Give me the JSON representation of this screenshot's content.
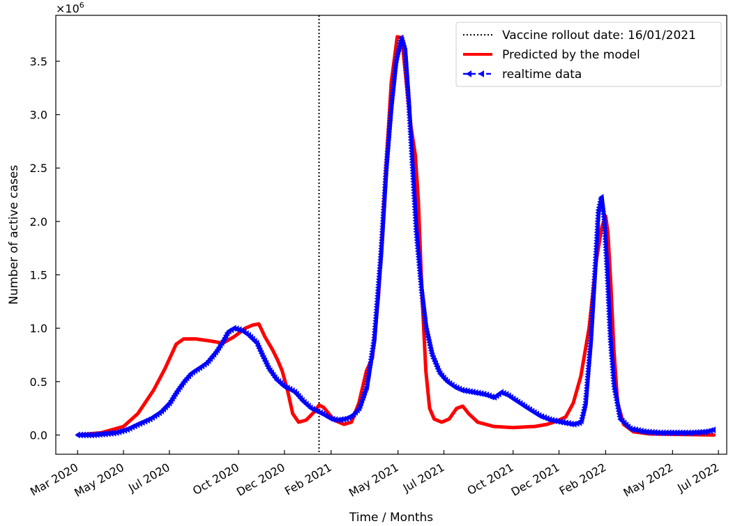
{
  "chart_data": {
    "type": "line",
    "title": "",
    "xlabel": "Time / Months",
    "ylabel": "Number of active cases",
    "y_multiplier_label": "×10",
    "y_multiplier_exponent": "6",
    "xlim": [
      "2020-02-01",
      "2022-07-12"
    ],
    "ylim": [
      -0.18,
      3.93
    ],
    "x_ticks": [
      {
        "date": "2020-03-01",
        "label": "Mar 2020"
      },
      {
        "date": "2020-05-01",
        "label": "May 2020"
      },
      {
        "date": "2020-07-01",
        "label": "Jul 2020"
      },
      {
        "date": "2020-10-01",
        "label": "Oct 2020"
      },
      {
        "date": "2020-12-01",
        "label": "Dec 2020"
      },
      {
        "date": "2021-02-01",
        "label": "Feb 2021"
      },
      {
        "date": "2021-05-01",
        "label": "May 2021"
      },
      {
        "date": "2021-07-01",
        "label": "Jul 2021"
      },
      {
        "date": "2021-10-01",
        "label": "Oct 2021"
      },
      {
        "date": "2021-12-01",
        "label": "Dec 2021"
      },
      {
        "date": "2022-02-01",
        "label": "Feb 2022"
      },
      {
        "date": "2022-05-01",
        "label": "May 2022"
      },
      {
        "date": "2022-07-01",
        "label": "Jul 2022"
      }
    ],
    "y_ticks": [
      {
        "value": 0.0,
        "label": "0.0"
      },
      {
        "value": 0.5,
        "label": "0.5"
      },
      {
        "value": 1.0,
        "label": "1.0"
      },
      {
        "value": 1.5,
        "label": "1.5"
      },
      {
        "value": 2.0,
        "label": "2.0"
      },
      {
        "value": 2.5,
        "label": "2.5"
      },
      {
        "value": 3.0,
        "label": "3.0"
      },
      {
        "value": 3.5,
        "label": "3.5"
      }
    ],
    "vline": {
      "date": "2021-01-16",
      "name": "Vaccine rollout date: 16/01/2021",
      "color": "#000000",
      "style": "dotted"
    },
    "legend_position": "top-right",
    "grid": false,
    "series": [
      {
        "name": "Predicted by the model",
        "color": "#ff0000",
        "style": "solid",
        "points": [
          [
            "2020-03-01",
            0.0
          ],
          [
            "2020-04-01",
            0.02
          ],
          [
            "2020-05-01",
            0.08
          ],
          [
            "2020-05-20",
            0.2
          ],
          [
            "2020-06-10",
            0.42
          ],
          [
            "2020-06-25",
            0.62
          ],
          [
            "2020-07-10",
            0.85
          ],
          [
            "2020-07-20",
            0.9
          ],
          [
            "2020-08-05",
            0.9
          ],
          [
            "2020-08-25",
            0.88
          ],
          [
            "2020-09-10",
            0.86
          ],
          [
            "2020-09-25",
            0.92
          ],
          [
            "2020-10-10",
            1.0
          ],
          [
            "2020-10-20",
            1.03
          ],
          [
            "2020-10-28",
            1.04
          ],
          [
            "2020-11-05",
            0.92
          ],
          [
            "2020-11-15",
            0.8
          ],
          [
            "2020-11-22",
            0.7
          ],
          [
            "2020-11-28",
            0.6
          ],
          [
            "2020-12-05",
            0.42
          ],
          [
            "2020-12-12",
            0.2
          ],
          [
            "2020-12-20",
            0.12
          ],
          [
            "2020-12-30",
            0.14
          ],
          [
            "2021-01-10",
            0.22
          ],
          [
            "2021-01-16",
            0.28
          ],
          [
            "2021-01-22",
            0.26
          ],
          [
            "2021-02-05",
            0.14
          ],
          [
            "2021-02-18",
            0.1
          ],
          [
            "2021-02-28",
            0.12
          ],
          [
            "2021-03-10",
            0.3
          ],
          [
            "2021-03-20",
            0.6
          ],
          [
            "2021-03-28",
            0.72
          ],
          [
            "2021-04-05",
            1.3
          ],
          [
            "2021-04-15",
            2.5
          ],
          [
            "2021-04-22",
            3.3
          ],
          [
            "2021-04-30",
            3.73
          ],
          [
            "2021-05-06",
            3.72
          ],
          [
            "2021-05-12",
            3.3
          ],
          [
            "2021-05-18",
            2.9
          ],
          [
            "2021-05-24",
            2.62
          ],
          [
            "2021-05-28",
            2.2
          ],
          [
            "2021-06-02",
            1.3
          ],
          [
            "2021-06-07",
            0.6
          ],
          [
            "2021-06-12",
            0.25
          ],
          [
            "2021-06-18",
            0.15
          ],
          [
            "2021-06-28",
            0.12
          ],
          [
            "2021-07-08",
            0.15
          ],
          [
            "2021-07-18",
            0.25
          ],
          [
            "2021-07-26",
            0.27
          ],
          [
            "2021-08-03",
            0.2
          ],
          [
            "2021-08-15",
            0.12
          ],
          [
            "2021-09-05",
            0.08
          ],
          [
            "2021-10-01",
            0.07
          ],
          [
            "2021-10-30",
            0.08
          ],
          [
            "2021-11-15",
            0.1
          ],
          [
            "2021-11-28",
            0.13
          ],
          [
            "2021-12-10",
            0.17
          ],
          [
            "2021-12-20",
            0.3
          ],
          [
            "2021-12-30",
            0.55
          ],
          [
            "2022-01-10",
            1.0
          ],
          [
            "2022-01-20",
            1.65
          ],
          [
            "2022-01-27",
            1.95
          ],
          [
            "2022-02-01",
            2.05
          ],
          [
            "2022-02-04",
            1.9
          ],
          [
            "2022-02-08",
            1.4
          ],
          [
            "2022-02-12",
            0.8
          ],
          [
            "2022-02-17",
            0.3
          ],
          [
            "2022-02-25",
            0.1
          ],
          [
            "2022-03-10",
            0.03
          ],
          [
            "2022-04-01",
            0.01
          ],
          [
            "2022-06-25",
            0.0
          ]
        ]
      },
      {
        "name": "realtime data",
        "color": "#0000ff",
        "style": "dashed",
        "points": [
          [
            "2020-03-01",
            0.0
          ],
          [
            "2020-03-20",
            0.0
          ],
          [
            "2020-04-05",
            0.01
          ],
          [
            "2020-04-20",
            0.02
          ],
          [
            "2020-05-05",
            0.05
          ],
          [
            "2020-05-20",
            0.1
          ],
          [
            "2020-06-05",
            0.15
          ],
          [
            "2020-06-20",
            0.22
          ],
          [
            "2020-07-01",
            0.3
          ],
          [
            "2020-07-10",
            0.4
          ],
          [
            "2020-07-20",
            0.5
          ],
          [
            "2020-07-30",
            0.58
          ],
          [
            "2020-08-10",
            0.63
          ],
          [
            "2020-08-20",
            0.68
          ],
          [
            "2020-09-01",
            0.78
          ],
          [
            "2020-09-10",
            0.88
          ],
          [
            "2020-09-17",
            0.97
          ],
          [
            "2020-09-25",
            1.0
          ],
          [
            "2020-10-05",
            0.98
          ],
          [
            "2020-10-15",
            0.93
          ],
          [
            "2020-10-25",
            0.86
          ],
          [
            "2020-11-01",
            0.75
          ],
          [
            "2020-11-10",
            0.62
          ],
          [
            "2020-11-20",
            0.52
          ],
          [
            "2020-12-01",
            0.45
          ],
          [
            "2020-12-05",
            0.44
          ],
          [
            "2020-12-15",
            0.4
          ],
          [
            "2020-12-25",
            0.32
          ],
          [
            "2021-01-05",
            0.25
          ],
          [
            "2021-01-20",
            0.2
          ],
          [
            "2021-02-01",
            0.15
          ],
          [
            "2021-02-10",
            0.14
          ],
          [
            "2021-02-20",
            0.15
          ],
          [
            "2021-03-01",
            0.18
          ],
          [
            "2021-03-10",
            0.25
          ],
          [
            "2021-03-20",
            0.45
          ],
          [
            "2021-03-30",
            0.9
          ],
          [
            "2021-04-08",
            1.7
          ],
          [
            "2021-04-15",
            2.5
          ],
          [
            "2021-04-22",
            3.1
          ],
          [
            "2021-04-28",
            3.5
          ],
          [
            "2021-05-05",
            3.72
          ],
          [
            "2021-05-10",
            3.6
          ],
          [
            "2021-05-15",
            3.1
          ],
          [
            "2021-05-20",
            2.5
          ],
          [
            "2021-05-25",
            1.9
          ],
          [
            "2021-06-01",
            1.35
          ],
          [
            "2021-06-07",
            1.0
          ],
          [
            "2021-06-15",
            0.75
          ],
          [
            "2021-06-25",
            0.58
          ],
          [
            "2021-07-05",
            0.5
          ],
          [
            "2021-07-15",
            0.45
          ],
          [
            "2021-07-25",
            0.42
          ],
          [
            "2021-08-10",
            0.4
          ],
          [
            "2021-08-25",
            0.38
          ],
          [
            "2021-09-05",
            0.35
          ],
          [
            "2021-09-15",
            0.4
          ],
          [
            "2021-09-22",
            0.38
          ],
          [
            "2021-10-05",
            0.32
          ],
          [
            "2021-10-20",
            0.25
          ],
          [
            "2021-11-05",
            0.18
          ],
          [
            "2021-11-20",
            0.14
          ],
          [
            "2021-12-05",
            0.12
          ],
          [
            "2021-12-20",
            0.1
          ],
          [
            "2021-12-30",
            0.12
          ],
          [
            "2022-01-05",
            0.3
          ],
          [
            "2022-01-12",
            0.9
          ],
          [
            "2022-01-18",
            1.6
          ],
          [
            "2022-01-22",
            2.1
          ],
          [
            "2022-01-26",
            2.23
          ],
          [
            "2022-01-30",
            2.0
          ],
          [
            "2022-02-03",
            1.5
          ],
          [
            "2022-02-07",
            0.9
          ],
          [
            "2022-02-12",
            0.45
          ],
          [
            "2022-02-20",
            0.15
          ],
          [
            "2022-03-05",
            0.06
          ],
          [
            "2022-03-25",
            0.03
          ],
          [
            "2022-04-15",
            0.02
          ],
          [
            "2022-05-05",
            0.02
          ],
          [
            "2022-05-25",
            0.02
          ],
          [
            "2022-06-15",
            0.03
          ],
          [
            "2022-06-25",
            0.05
          ]
        ]
      }
    ]
  }
}
